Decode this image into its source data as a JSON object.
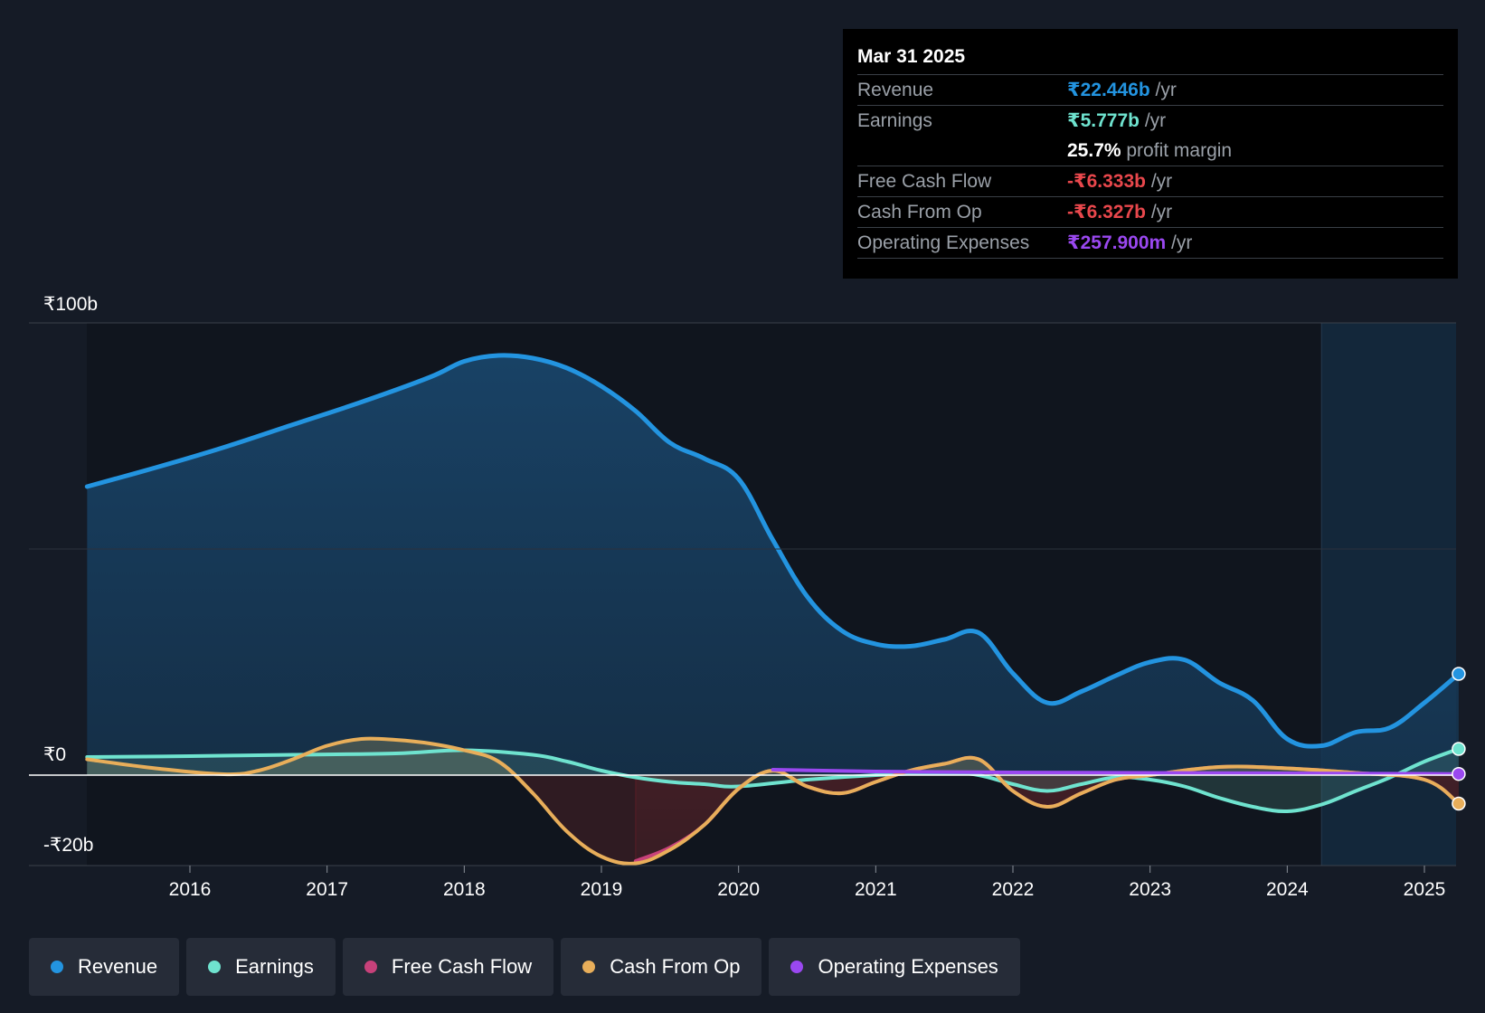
{
  "colors": {
    "background": "#151b26",
    "revenue": "#2394e0",
    "earnings": "#6fe3cf",
    "free_cash_flow": "#c7417a",
    "cash_from_op": "#e8ae5a",
    "operating_expenses": "#9a48f0",
    "negative": "#e8474c"
  },
  "tooltip": {
    "date": "Mar 31 2025",
    "rows": [
      {
        "label": "Revenue",
        "value": "₹22.446b",
        "unit": "/yr",
        "color": "#2394e0"
      },
      {
        "label": "Earnings",
        "value": "₹5.777b",
        "unit": "/yr",
        "color": "#6fe3cf"
      },
      {
        "label": "",
        "value": "25.7%",
        "unit": "profit margin",
        "color": "#ffffff"
      },
      {
        "label": "Free Cash Flow",
        "value": "-₹6.333b",
        "unit": "/yr",
        "color": "#e8474c"
      },
      {
        "label": "Cash From Op",
        "value": "-₹6.327b",
        "unit": "/yr",
        "color": "#e8474c"
      },
      {
        "label": "Operating Expenses",
        "value": "₹257.900m",
        "unit": "/yr",
        "color": "#9a48f0"
      }
    ]
  },
  "legend": [
    {
      "label": "Revenue",
      "color": "#2394e0"
    },
    {
      "label": "Earnings",
      "color": "#6fe3cf"
    },
    {
      "label": "Free Cash Flow",
      "color": "#c7417a"
    },
    {
      "label": "Cash From Op",
      "color": "#e8ae5a"
    },
    {
      "label": "Operating Expenses",
      "color": "#9a48f0"
    }
  ],
  "chart_data": {
    "type": "area",
    "title": "",
    "xlabel": "",
    "ylabel": "",
    "ylim": [
      -20,
      100
    ],
    "xlim": [
      2015.25,
      2025.25
    ],
    "y_tick_labels": [
      {
        "value": 100,
        "label": "₹100b"
      },
      {
        "value": 0,
        "label": "₹0"
      },
      {
        "value": -20,
        "label": "-₹20b"
      }
    ],
    "x_ticks": [
      2016,
      2017,
      2018,
      2019,
      2020,
      2021,
      2022,
      2023,
      2024,
      2025
    ],
    "x_tick_labels": [
      "2016",
      "2017",
      "2018",
      "2019",
      "2020",
      "2021",
      "2022",
      "2023",
      "2024",
      "2025"
    ],
    "forecast_start": 2024.25,
    "series": [
      {
        "name": "Revenue",
        "x": [
          2015.25,
          2015.75,
          2016.25,
          2016.75,
          2017.25,
          2017.75,
          2018.0,
          2018.25,
          2018.5,
          2018.75,
          2019.0,
          2019.25,
          2019.5,
          2019.75,
          2020.0,
          2020.25,
          2020.5,
          2020.75,
          2021.0,
          2021.25,
          2021.5,
          2021.75,
          2022.0,
          2022.25,
          2022.5,
          2022.75,
          2023.0,
          2023.25,
          2023.5,
          2023.75,
          2024.0,
          2024.25,
          2024.5,
          2024.75,
          2025.0,
          2025.25
        ],
        "values": [
          63.8,
          68.0,
          72.5,
          77.5,
          82.5,
          88.0,
          91.5,
          92.8,
          92.2,
          90.0,
          86.0,
          80.5,
          73.5,
          70.0,
          65.5,
          52.0,
          39.5,
          32.0,
          29.0,
          28.5,
          30.0,
          31.5,
          22.5,
          16.0,
          18.5,
          22.0,
          25.0,
          25.5,
          20.5,
          16.5,
          8.0,
          6.5,
          9.5,
          10.5,
          16.0,
          22.4
        ]
      },
      {
        "name": "Earnings",
        "x": [
          2015.25,
          2016.0,
          2016.75,
          2017.5,
          2018.0,
          2018.5,
          2018.75,
          2019.0,
          2019.25,
          2019.5,
          2019.75,
          2020.0,
          2020.5,
          2021.0,
          2021.5,
          2021.75,
          2022.0,
          2022.25,
          2022.5,
          2022.75,
          2023.0,
          2023.25,
          2023.5,
          2023.75,
          2024.0,
          2024.25,
          2024.5,
          2024.75,
          2025.0,
          2025.25
        ],
        "values": [
          4.0,
          4.2,
          4.5,
          4.8,
          5.5,
          4.5,
          3.0,
          1.0,
          -0.5,
          -1.5,
          -2.0,
          -2.5,
          -1.0,
          0.0,
          0.5,
          0.0,
          -2.0,
          -3.5,
          -2.0,
          -0.5,
          -1.0,
          -2.5,
          -5.0,
          -7.0,
          -8.0,
          -6.5,
          -3.5,
          -0.5,
          3.0,
          5.8
        ]
      },
      {
        "name": "Free Cash Flow",
        "x": [
          2019.25,
          2019.5,
          2019.75,
          2020.0,
          2020.25,
          2020.5,
          2020.75,
          2021.0,
          2021.25,
          2021.5,
          2021.75,
          2022.0,
          2022.25,
          2022.5,
          2022.75,
          2023.0,
          2023.5,
          2024.0,
          2024.5,
          2025.0,
          2025.25
        ],
        "values": [
          -19.0,
          -16.0,
          -11.0,
          -3.0,
          1.0,
          -2.5,
          -4.0,
          -1.5,
          1.0,
          2.5,
          3.5,
          -3.5,
          -7.0,
          -4.0,
          -1.0,
          0.0,
          1.8,
          1.5,
          0.5,
          -1.0,
          -6.3
        ]
      },
      {
        "name": "Cash From Op",
        "x": [
          2015.25,
          2015.75,
          2016.25,
          2016.5,
          2016.75,
          2017.0,
          2017.25,
          2017.5,
          2017.75,
          2018.0,
          2018.25,
          2018.5,
          2018.75,
          2019.0,
          2019.25,
          2019.5,
          2019.75,
          2020.0,
          2020.25,
          2020.5,
          2020.75,
          2021.0,
          2021.25,
          2021.5,
          2021.75,
          2022.0,
          2022.25,
          2022.5,
          2022.75,
          2023.0,
          2023.5,
          2024.0,
          2024.5,
          2025.0,
          2025.25
        ],
        "values": [
          3.5,
          1.5,
          0.2,
          1.0,
          3.5,
          6.5,
          8.0,
          7.8,
          7.0,
          5.5,
          3.0,
          -4.0,
          -12.5,
          -18.0,
          -19.5,
          -16.5,
          -11.0,
          -3.0,
          1.0,
          -2.5,
          -4.0,
          -1.5,
          1.0,
          2.5,
          3.5,
          -3.5,
          -7.0,
          -4.0,
          -1.0,
          0.0,
          1.8,
          1.5,
          0.5,
          -1.0,
          -6.3
        ]
      },
      {
        "name": "Operating Expenses",
        "x": [
          2020.25,
          2021.0,
          2022.0,
          2023.0,
          2024.0,
          2025.0,
          2025.25
        ],
        "values": [
          1.2,
          0.8,
          0.6,
          0.5,
          0.4,
          0.3,
          0.26
        ]
      }
    ]
  }
}
